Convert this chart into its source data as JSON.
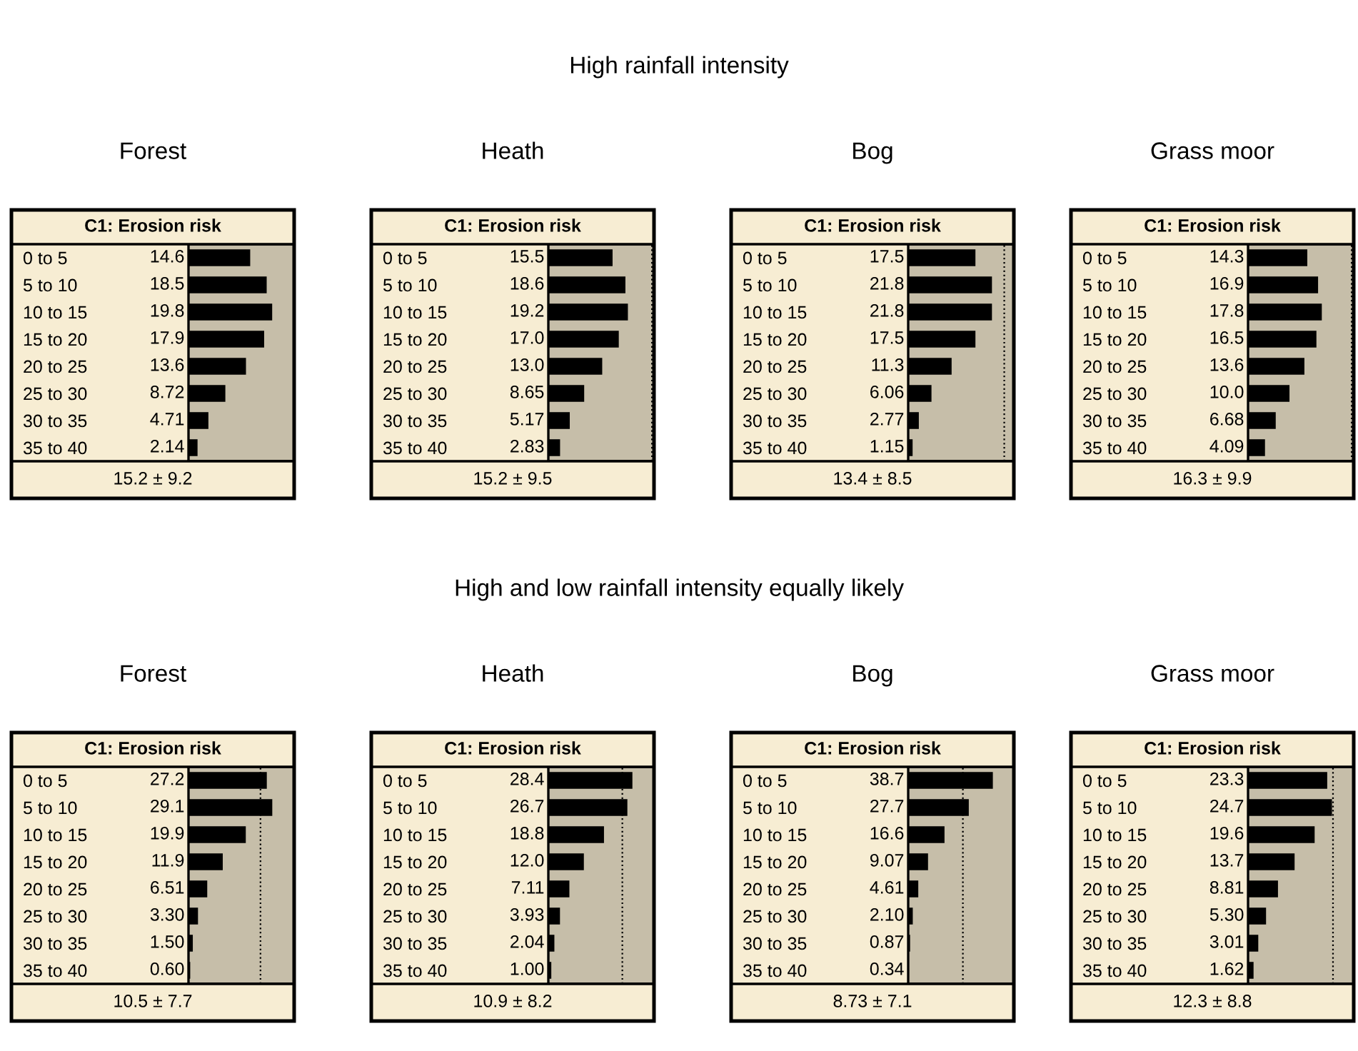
{
  "chart_data": [
    {
      "type": "bar",
      "orientation": "horizontal",
      "title": "Forest",
      "subtitle": "C1: Erosion risk",
      "categories": [
        "0 to 5",
        "5 to 10",
        "10 to 15",
        "15 to 20",
        "20 to 25",
        "25 to 30",
        "30 to 35",
        "35 to 40"
      ],
      "values": [
        14.6,
        18.5,
        19.8,
        17.9,
        13.6,
        8.72,
        4.71,
        2.14
      ],
      "value_labels": [
        "14.6",
        "18.5",
        "19.8",
        "17.9",
        "13.6",
        "8.72",
        "4.71",
        "2.14"
      ],
      "color": "#000000",
      "xlim": [
        0,
        25
      ],
      "tick_labels": "y",
      "annotations": [
        "15.2 ± 9.2",
        "High rainfall intensity"
      ]
    },
    {
      "type": "bar",
      "orientation": "horizontal",
      "title": "Heath",
      "subtitle": "C1: Erosion risk",
      "categories": [
        "0 to 5",
        "5 to 10",
        "10 to 15",
        "15 to 20",
        "20 to 25",
        "25 to 30",
        "30 to 35",
        "35 to 40"
      ],
      "values": [
        15.5,
        18.6,
        19.2,
        17.0,
        13.0,
        8.65,
        5.17,
        2.83
      ],
      "value_labels": [
        "15.5",
        "18.6",
        "19.2",
        "17.0",
        "13.0",
        "8.65",
        "5.17",
        "2.83"
      ],
      "color": "#000000",
      "xlim": [
        0,
        25.5
      ],
      "ref_lines": [
        {
          "axis": "x",
          "value": 25,
          "color": "#000000",
          "line_style": "dotted"
        }
      ],
      "tick_labels": "y",
      "annotations": [
        "15.2 ± 9.5"
      ]
    },
    {
      "type": "bar",
      "orientation": "horizontal",
      "title": "Bog",
      "subtitle": "C1: Erosion risk",
      "categories": [
        "0 to 5",
        "5 to 10",
        "10 to 15",
        "15 to 20",
        "20 to 25",
        "25 to 30",
        "30 to 35",
        "35 to 40"
      ],
      "values": [
        17.5,
        21.8,
        21.8,
        17.5,
        11.3,
        6.06,
        2.77,
        1.15
      ],
      "value_labels": [
        "17.5",
        "21.8",
        "21.8",
        "17.5",
        "11.3",
        "6.06",
        "2.77",
        "1.15"
      ],
      "color": "#000000",
      "xlim": [
        0,
        27.5
      ],
      "ref_lines": [
        {
          "axis": "x",
          "value": 25,
          "color": "#000000",
          "line_style": "dotted"
        }
      ],
      "tick_labels": "y",
      "annotations": [
        "13.4 ± 8.5"
      ]
    },
    {
      "type": "bar",
      "orientation": "horizontal",
      "title": "Grass moor",
      "subtitle": "C1: Erosion risk",
      "categories": [
        "0 to 5",
        "5 to 10",
        "10 to 15",
        "15 to 20",
        "20 to 25",
        "25 to 30",
        "30 to 35",
        "35 to 40"
      ],
      "values": [
        14.3,
        16.9,
        17.8,
        16.5,
        13.6,
        10.0,
        6.68,
        4.09
      ],
      "value_labels": [
        "14.3",
        "16.9",
        "17.8",
        "16.5",
        "13.6",
        "10.0",
        "6.68",
        "4.09"
      ],
      "color": "#000000",
      "xlim": [
        0,
        25.5
      ],
      "ref_lines": [
        {
          "axis": "x",
          "value": 25,
          "color": "#000000",
          "line_style": "dotted"
        }
      ],
      "tick_labels": "y",
      "annotations": [
        "16.3 ± 9.9"
      ]
    },
    {
      "type": "bar",
      "orientation": "horizontal",
      "title": "Forest",
      "subtitle": "C1: Erosion risk",
      "categories": [
        "0 to 5",
        "5 to 10",
        "10 to 15",
        "15 to 20",
        "20 to 25",
        "25 to 30",
        "30 to 35",
        "35 to 40"
      ],
      "values": [
        27.2,
        29.1,
        19.9,
        11.9,
        6.51,
        3.3,
        1.5,
        0.6
      ],
      "value_labels": [
        "27.2",
        "29.1",
        "19.9",
        "11.9",
        "6.51",
        "3.30",
        "1.50",
        "0.60"
      ],
      "color": "#000000",
      "xlim": [
        0,
        36.7
      ],
      "ref_lines": [
        {
          "axis": "x",
          "value": 25,
          "color": "#000000",
          "line_style": "dotted"
        }
      ],
      "tick_labels": "y",
      "annotations": [
        "10.5 ± 7.7",
        "High and low rainfall intensity equally likely"
      ]
    },
    {
      "type": "bar",
      "orientation": "horizontal",
      "title": "Heath",
      "subtitle": "C1: Erosion risk",
      "categories": [
        "0 to 5",
        "5 to 10",
        "10 to 15",
        "15 to 20",
        "20 to 25",
        "25 to 30",
        "30 to 35",
        "35 to 40"
      ],
      "values": [
        28.4,
        26.7,
        18.8,
        12.0,
        7.11,
        3.93,
        2.04,
        1.0
      ],
      "value_labels": [
        "28.4",
        "26.7",
        "18.8",
        "12.0",
        "7.11",
        "3.93",
        "2.04",
        "1.00"
      ],
      "color": "#000000",
      "xlim": [
        0,
        35.7
      ],
      "ref_lines": [
        {
          "axis": "x",
          "value": 25,
          "color": "#000000",
          "line_style": "dotted"
        }
      ],
      "tick_labels": "y",
      "annotations": [
        "10.9 ± 8.2"
      ]
    },
    {
      "type": "bar",
      "orientation": "horizontal",
      "title": "Bog",
      "subtitle": "C1: Erosion risk",
      "categories": [
        "0 to 5",
        "5 to 10",
        "10 to 15",
        "15 to 20",
        "20 to 25",
        "25 to 30",
        "30 to 35",
        "35 to 40"
      ],
      "values": [
        38.7,
        27.7,
        16.6,
        9.07,
        4.61,
        2.1,
        0.87,
        0.34
      ],
      "value_labels": [
        "38.7",
        "27.7",
        "16.6",
        "9.07",
        "4.61",
        "2.10",
        "0.87",
        "0.34"
      ],
      "color": "#000000",
      "xlim": [
        0,
        48.3
      ],
      "ref_lines": [
        {
          "axis": "x",
          "value": 25,
          "color": "#000000",
          "line_style": "dotted"
        }
      ],
      "tick_labels": "y",
      "annotations": [
        "8.73 ± 7.1"
      ]
    },
    {
      "type": "bar",
      "orientation": "horizontal",
      "title": "Grass moor",
      "subtitle": "C1: Erosion risk",
      "categories": [
        "0 to 5",
        "5 to 10",
        "10 to 15",
        "15 to 20",
        "20 to 25",
        "25 to 30",
        "30 to 35",
        "35 to 40"
      ],
      "values": [
        23.3,
        24.7,
        19.6,
        13.7,
        8.81,
        5.3,
        3.01,
        1.62
      ],
      "value_labels": [
        "23.3",
        "24.7",
        "19.6",
        "13.7",
        "8.81",
        "5.30",
        "3.01",
        "1.62"
      ],
      "color": "#000000",
      "xlim": [
        0,
        31.1
      ],
      "ref_lines": [
        {
          "axis": "x",
          "value": 25,
          "color": "#000000",
          "line_style": "dotted"
        }
      ],
      "tick_labels": "y",
      "annotations": [
        "12.3 ± 8.8"
      ]
    }
  ]
}
